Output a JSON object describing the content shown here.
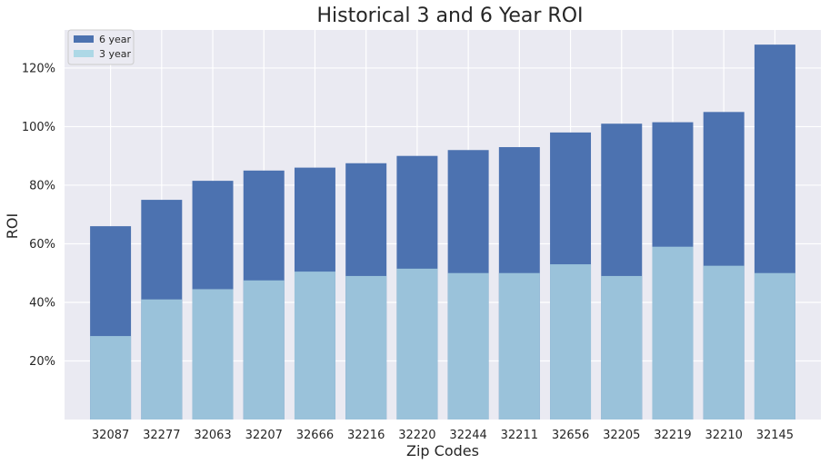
{
  "chart_data": {
    "type": "bar",
    "title": "Historical 3 and 6 Year ROI",
    "xlabel": "Zip Codes",
    "ylabel": "ROI",
    "categories": [
      "32087",
      "32277",
      "32063",
      "32207",
      "32666",
      "32216",
      "32220",
      "32244",
      "32211",
      "32656",
      "32205",
      "32219",
      "32210",
      "32145"
    ],
    "series": [
      {
        "name": "6 year",
        "color": "#4c72b0",
        "values": [
          66,
          75,
          81.5,
          85,
          86,
          87.5,
          90,
          92,
          93,
          98,
          101,
          101.5,
          105,
          128
        ]
      },
      {
        "name": "3 year",
        "color": "#9ac2da",
        "values": [
          28.5,
          41,
          44.5,
          47.5,
          50.5,
          49,
          51.5,
          50,
          50,
          53,
          49,
          59,
          52.5,
          50
        ]
      }
    ],
    "legend_swatches": [
      "#4c72b0",
      "#add8e6"
    ],
    "ylim": [
      0,
      133
    ],
    "yticks": [
      20,
      40,
      60,
      80,
      100,
      120
    ],
    "ytick_labels": [
      "20%",
      "40%",
      "60%",
      "80%",
      "100%",
      "120%"
    ],
    "grid": true,
    "legend_position": "top-left",
    "background": "#eaeaf2",
    "grid_color": "#ffffff"
  }
}
